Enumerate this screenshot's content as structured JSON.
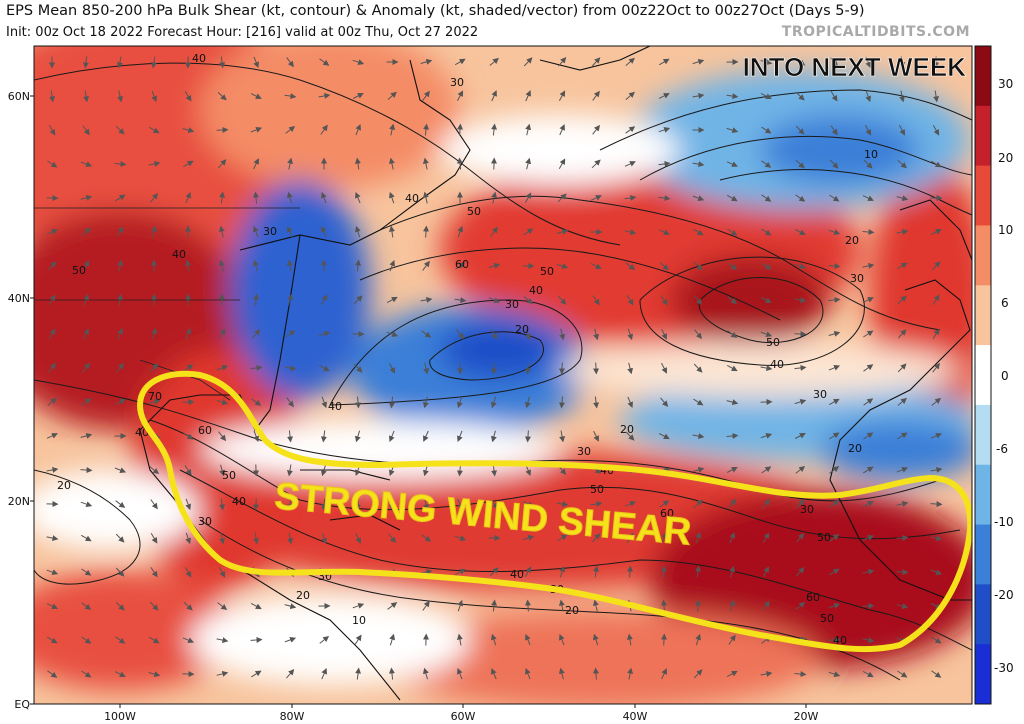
{
  "header": {
    "title": "EPS Mean 850-200 hPa Bulk Shear (kt, contour) & Anomaly (kt, shaded/vector) from 00z22Oct to 00z27Oct (Days 5-9)",
    "subtitle": "Init: 00z Oct 18 2022   Forecast Hour: [216]   valid at 00z Thu, Oct 27 2022",
    "credit": "TROPICALTIDBITS.COM"
  },
  "annotations": {
    "banner": "INTO NEXT WEEK",
    "shear_label": "STRONG WIND SHEAR"
  },
  "map": {
    "lat_labels": [
      "60N",
      "40N",
      "20N",
      "EQ"
    ],
    "lon_labels": [
      "100W",
      "80W",
      "60W",
      "40W",
      "20W"
    ],
    "contour_labels": [
      "40",
      "30",
      "40",
      "50",
      "40",
      "30",
      "40",
      "30",
      "60",
      "50",
      "40",
      "50",
      "40",
      "30",
      "20",
      "10",
      "20",
      "30",
      "40",
      "50",
      "70",
      "60",
      "50",
      "40",
      "30",
      "20",
      "30",
      "20",
      "30",
      "40",
      "50",
      "60",
      "30",
      "50",
      "40",
      "30",
      "20",
      "10",
      "20",
      "40",
      "50",
      "60",
      "20",
      "20",
      "30",
      "40",
      "50",
      "60"
    ],
    "highlight_color": "#f5e21b"
  },
  "colorbar": {
    "ticks": [
      "30",
      "20",
      "10",
      "6",
      "0",
      "-6",
      "-10",
      "-20",
      "-30"
    ],
    "colors": [
      "#8b0a14",
      "#c4212a",
      "#e84a3a",
      "#f48c66",
      "#f7c49d",
      "#ffffff",
      "#b5ddf2",
      "#6fb4e6",
      "#3a7fd8",
      "#1f4ec8",
      "#1a2ed6"
    ]
  }
}
